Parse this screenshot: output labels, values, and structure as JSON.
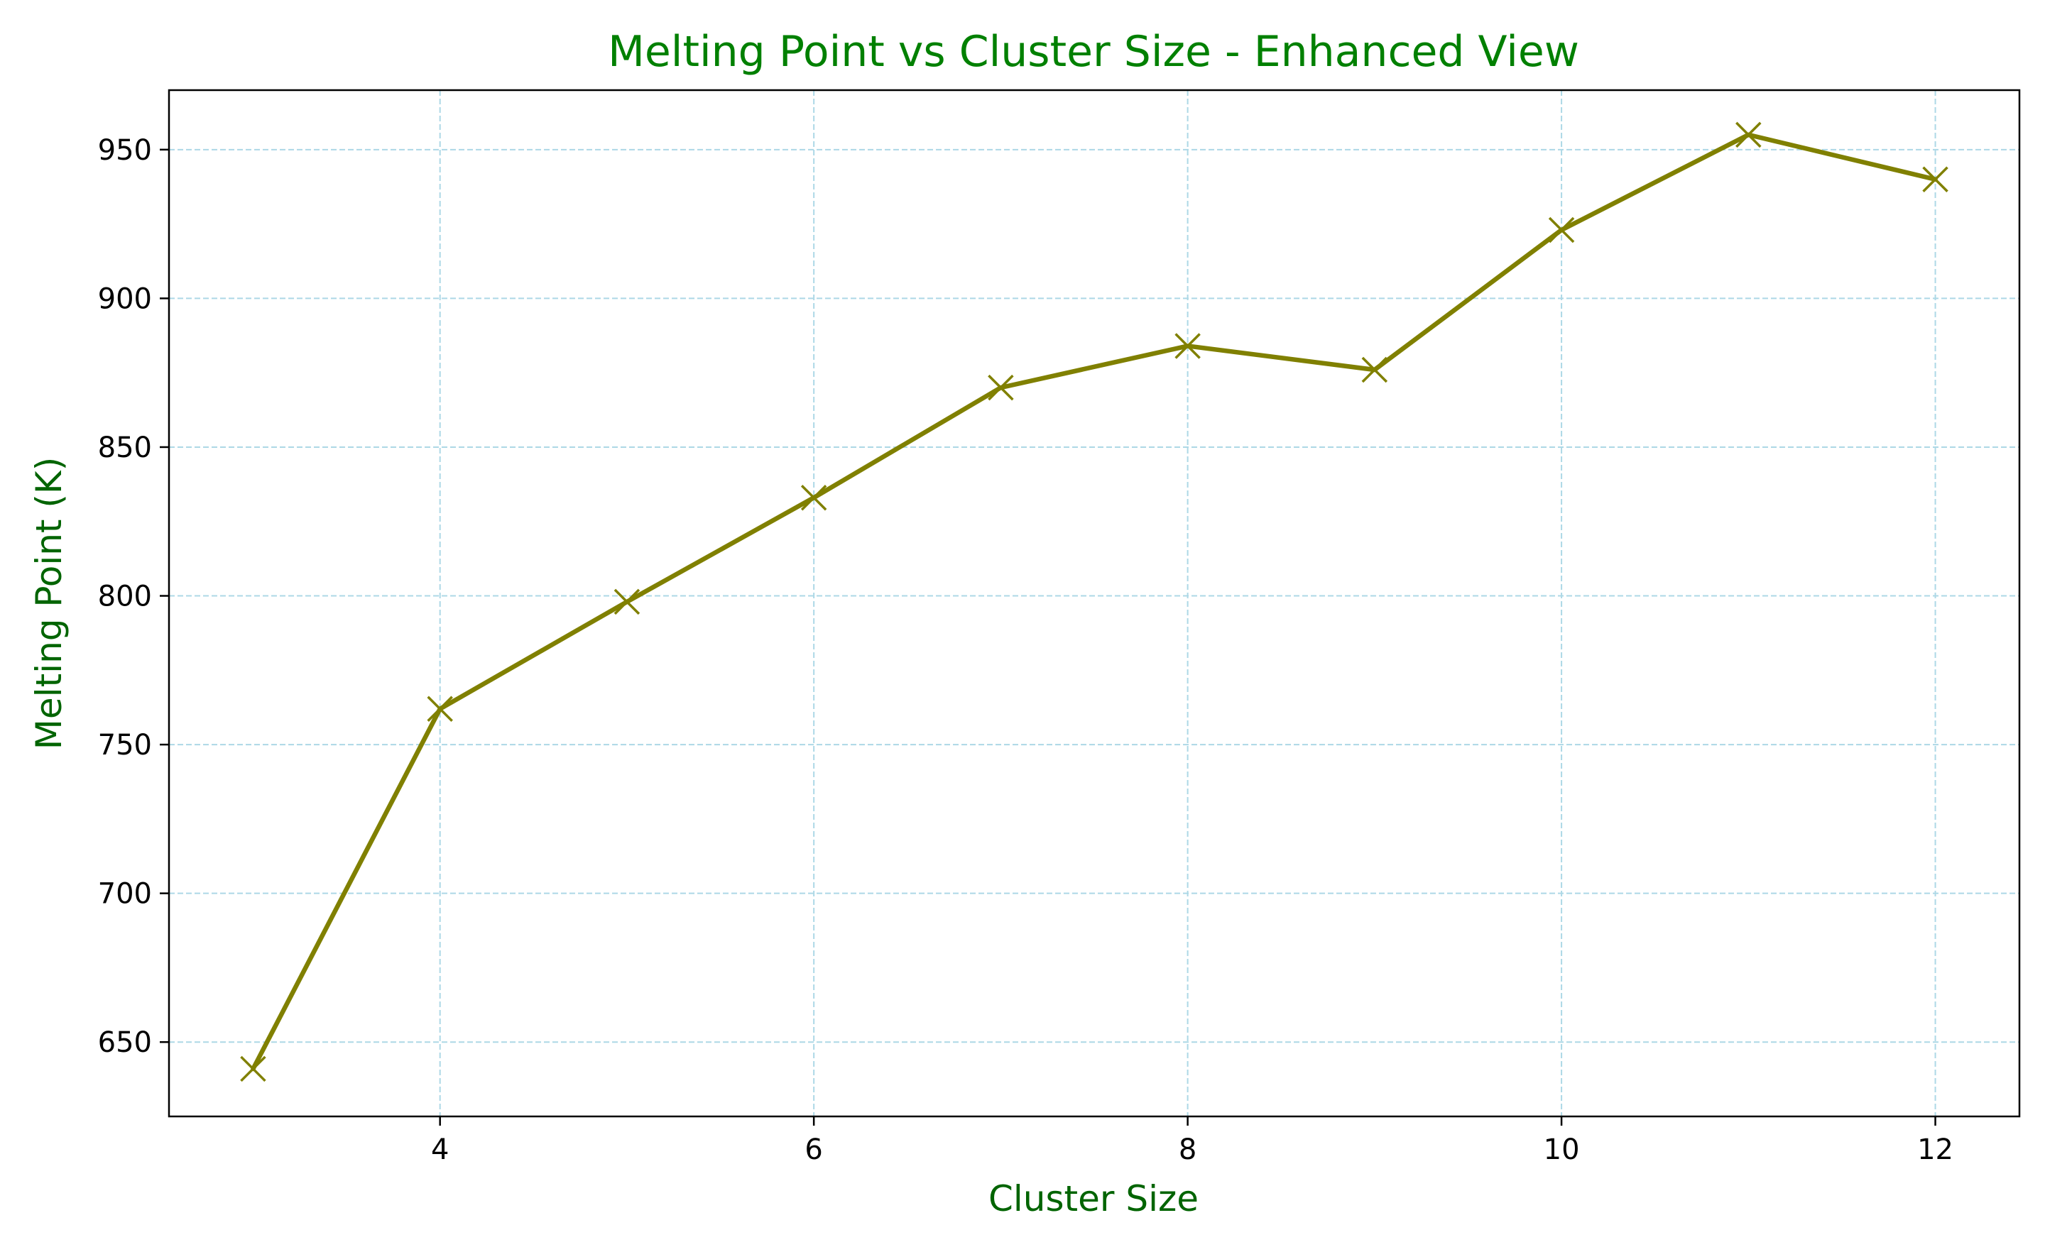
{
  "chart_data": {
    "type": "line",
    "title": "Melting Point vs Cluster Size - Enhanced View",
    "xlabel": "Cluster Size",
    "ylabel": "Melting Point (K)",
    "xlim": [
      2.55,
      12.45
    ],
    "ylim": [
      625,
      970
    ],
    "xticks": [
      4,
      6,
      8,
      10,
      12
    ],
    "yticks": [
      650,
      700,
      750,
      800,
      850,
      900,
      950
    ],
    "grid": true,
    "legend": "none",
    "colors": {
      "title": "#008000",
      "axis_label": "#006400",
      "line": "#808000",
      "grid": "#add8e6",
      "axes": "#000000"
    },
    "marker": "x",
    "series": [
      {
        "x": [
          3,
          4,
          5,
          6,
          7,
          8,
          9,
          10,
          11,
          12
        ],
        "y": [
          641,
          762,
          798,
          833,
          870,
          884,
          876,
          923,
          955,
          940
        ]
      }
    ]
  }
}
